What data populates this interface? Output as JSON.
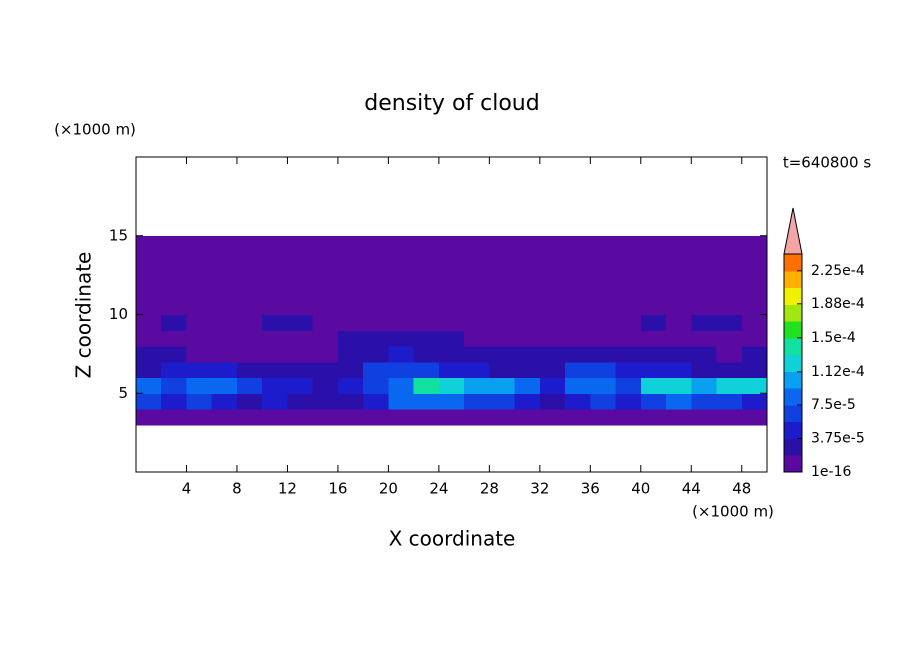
{
  "chart_data": {
    "type": "contour",
    "title": "density of cloud",
    "x_label": "X coordinate",
    "y_label": "Z coordinate",
    "x_unit": "(×1000 m)",
    "y_unit": "(×1000 m)",
    "annotation": "t=640800 s",
    "xlim": [
      0,
      50
    ],
    "xticks": [
      4,
      8,
      12,
      16,
      20,
      24,
      28,
      32,
      36,
      40,
      44,
      48
    ],
    "ylim": [
      0,
      20
    ],
    "yticks": [
      5,
      10,
      15
    ],
    "field": {
      "x": [
        1,
        3,
        5,
        7,
        9,
        11,
        13,
        15,
        17,
        19,
        21,
        23,
        25,
        27,
        29,
        31,
        33,
        35,
        37,
        39,
        41,
        43,
        45,
        47,
        49
      ],
      "z": [
        3.5,
        4.5,
        5.5,
        6.5,
        7.5,
        8.5,
        9.5,
        10.5,
        11.5,
        12.5,
        13.5,
        14.5
      ],
      "values": [
        [
          1e-06,
          1e-06,
          1e-06,
          1e-06,
          1e-06,
          1e-06,
          1e-06,
          1e-06,
          1e-06,
          1e-06,
          1e-06,
          1e-06,
          1e-06,
          1e-06,
          1e-06,
          1e-06,
          1e-06,
          1e-06,
          1e-06,
          1e-06,
          1e-06,
          1e-06,
          1e-06,
          1e-06,
          1e-06
        ],
        [
          6e-05,
          4e-05,
          6e-05,
          4e-05,
          3e-05,
          4e-05,
          3e-05,
          2e-05,
          3e-05,
          4e-05,
          8e-05,
          8e-05,
          8e-05,
          6e-05,
          6e-05,
          4e-05,
          3e-05,
          4e-05,
          6e-05,
          4e-05,
          6e-05,
          8e-05,
          6e-05,
          6e-05,
          4e-05
        ],
        [
          9e-05,
          6e-05,
          8e-05,
          8e-05,
          6e-05,
          4e-05,
          4e-05,
          3e-05,
          4e-05,
          6e-05,
          8e-05,
          0.00014,
          0.00013,
          0.0001,
          0.00011,
          8e-05,
          4e-05,
          8e-05,
          9e-05,
          6e-05,
          0.00012,
          0.00013,
          0.00011,
          0.00012,
          0.00012
        ],
        [
          3e-05,
          5e-05,
          4e-05,
          4e-05,
          3e-05,
          2e-05,
          2e-05,
          2e-05,
          3e-05,
          6e-05,
          6e-05,
          6e-05,
          5e-05,
          4e-05,
          3e-05,
          3e-05,
          3e-05,
          6e-05,
          6e-05,
          5e-05,
          4e-05,
          4e-05,
          3e-05,
          3e-05,
          3e-05
        ],
        [
          2e-05,
          2e-05,
          1e-06,
          1e-06,
          1e-06,
          1e-06,
          1e-06,
          1e-06,
          2e-05,
          3e-05,
          4e-05,
          3e-05,
          2e-05,
          2e-05,
          2e-05,
          2e-05,
          2e-05,
          3e-05,
          3e-05,
          2e-05,
          2e-05,
          2e-05,
          2e-05,
          1e-06,
          2e-05
        ],
        [
          1e-06,
          1e-06,
          1e-06,
          1e-06,
          1e-06,
          1e-06,
          1e-06,
          1e-06,
          2e-05,
          2e-05,
          2e-05,
          2e-05,
          2e-05,
          1e-06,
          1e-06,
          1e-06,
          1e-06,
          1e-06,
          1e-06,
          1e-06,
          1e-06,
          1e-06,
          1e-06,
          1e-06,
          1e-06
        ],
        [
          1e-06,
          2e-05,
          1e-06,
          1e-06,
          1e-06,
          2e-05,
          2e-05,
          1e-06,
          1e-06,
          1e-06,
          1e-06,
          1e-06,
          1e-06,
          1e-06,
          1e-06,
          1e-06,
          1e-06,
          1e-06,
          1e-06,
          1e-06,
          2e-05,
          1e-06,
          2e-05,
          2e-05,
          1e-06
        ],
        [
          1e-06,
          1e-06,
          1e-06,
          1e-06,
          1e-06,
          1e-06,
          1e-06,
          1e-06,
          1e-06,
          1e-06,
          1e-06,
          1e-06,
          1e-06,
          1e-06,
          1e-06,
          1e-06,
          1e-06,
          1e-06,
          1e-06,
          1e-06,
          1e-06,
          1e-06,
          1e-06,
          1e-06,
          1e-06
        ],
        [
          1e-06,
          1e-06,
          1e-06,
          1e-06,
          1e-06,
          1e-06,
          1e-06,
          1e-06,
          1e-06,
          1e-06,
          1e-06,
          1e-06,
          1e-06,
          1e-06,
          1e-06,
          1e-06,
          1e-06,
          1e-06,
          1e-06,
          1e-06,
          1e-06,
          1e-06,
          1e-06,
          1e-06,
          1e-06
        ],
        [
          1e-06,
          1e-06,
          1e-06,
          1e-06,
          1e-06,
          1e-06,
          1e-06,
          1e-06,
          1e-06,
          1e-06,
          1e-06,
          1e-06,
          1e-06,
          1e-06,
          1e-06,
          1e-06,
          1e-06,
          1e-06,
          1e-06,
          1e-06,
          1e-06,
          1e-06,
          1e-06,
          1e-06,
          1e-06
        ],
        [
          1e-06,
          1e-06,
          1e-06,
          1e-06,
          1e-06,
          1e-06,
          1e-06,
          1e-06,
          1e-06,
          1e-06,
          1e-06,
          1e-06,
          1e-06,
          1e-06,
          1e-06,
          1e-06,
          1e-06,
          1e-06,
          1e-06,
          1e-06,
          1e-06,
          1e-06,
          1e-06,
          1e-06,
          1e-06
        ],
        [
          1e-06,
          1e-06,
          1e-06,
          1e-06,
          1e-06,
          1e-06,
          1e-06,
          1e-06,
          1e-06,
          1e-06,
          1e-06,
          1e-06,
          1e-06,
          1e-06,
          1e-06,
          1e-06,
          1e-06,
          1e-06,
          1e-06,
          1e-06,
          1e-06,
          1e-06,
          1e-06,
          1e-06,
          1e-06
        ]
      ]
    },
    "colorbar": {
      "lim": [
        1e-16,
        0.00024375
      ],
      "ticks": [
        1e-16,
        {
          "value": 3.75e-05,
          "label": "3.75e-5"
        },
        {
          "value": 7.5e-05,
          "label": "7.5e-5"
        },
        {
          "value": 0.000112,
          "label": "1.12e-4"
        },
        {
          "value": 0.00015,
          "label": "1.5e-4"
        },
        {
          "value": 0.000188,
          "label": "1.88e-4"
        },
        {
          "value": 0.000225,
          "label": "2.25e-4"
        }
      ],
      "colors": [
        "#5a0aa0",
        "#2a10a8",
        "#1c1ccc",
        "#1040e0",
        "#0a68f0",
        "#0aa0f0",
        "#10d0d8",
        "#10e0a0",
        "#20e020",
        "#a0e810",
        "#f0f000",
        "#ffb000",
        "#ff7000"
      ],
      "extend_color": "#f4a4a4"
    }
  }
}
